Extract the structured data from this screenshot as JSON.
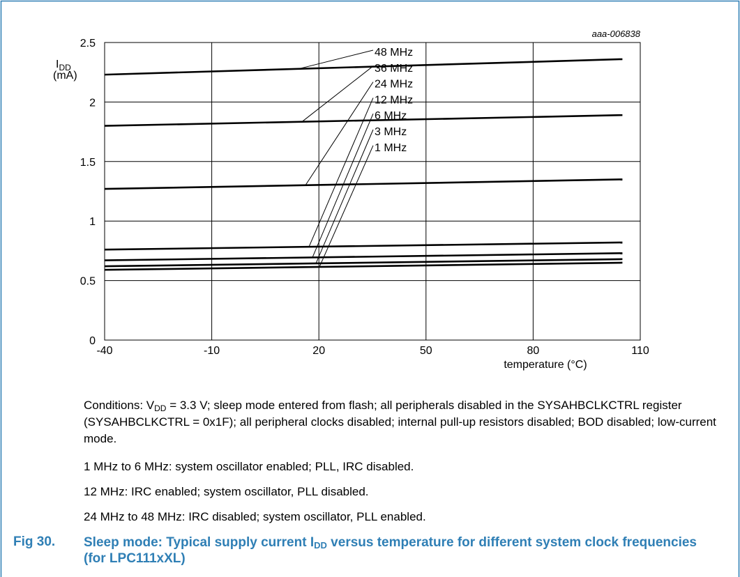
{
  "figure_code": "aaa-006838",
  "chart_data": {
    "type": "line",
    "ylabel_main": "I",
    "ylabel_sub": "DD",
    "ylabel_unit": "(mA)",
    "xlabel": "temperature (°C)",
    "xlim": [
      -40,
      110
    ],
    "ylim": [
      0,
      2.5
    ],
    "xticks": [
      -40,
      -10,
      20,
      50,
      80,
      110
    ],
    "xtick_labels": [
      "-40",
      "-10",
      "20",
      "50",
      "80",
      "110"
    ],
    "yticks": [
      0,
      0.5,
      1,
      1.5,
      2,
      2.5
    ],
    "ytick_labels": [
      "0",
      "0.5",
      "1",
      "1.5",
      "2",
      "2.5"
    ],
    "grid": true,
    "x": [
      -40,
      105
    ],
    "series": [
      {
        "name": "48 MHz",
        "values": [
          2.23,
          2.36
        ]
      },
      {
        "name": "36 MHz",
        "values": [
          1.8,
          1.89
        ]
      },
      {
        "name": "24 MHz",
        "values": [
          1.27,
          1.35
        ]
      },
      {
        "name": "12 MHz",
        "values": [
          0.76,
          0.82
        ]
      },
      {
        "name": "6 MHz",
        "values": [
          0.67,
          0.73
        ]
      },
      {
        "name": "3 MHz",
        "values": [
          0.62,
          0.68
        ]
      },
      {
        "name": "1 MHz",
        "values": [
          0.59,
          0.65
        ]
      }
    ]
  },
  "conditions": {
    "line1_pre": "Conditions: V",
    "line1_sub": "DD",
    "line1_post": " = 3.3 V; sleep mode entered from flash; all peripherals disabled in the SYSAHBCLKCTRL register (SYSAHBCLKCTRL = 0x1F); all peripheral clocks disabled; internal pull-up resistors disabled; BOD disabled; low-current mode.",
    "note1": "1 MHz to 6 MHz: system oscillator enabled; PLL, IRC disabled.",
    "note2": "12 MHz: IRC enabled; system oscillator, PLL disabled.",
    "note3": "24 MHz to 48 MHz: IRC disabled; system oscillator, PLL enabled."
  },
  "caption": {
    "label": "Fig 30.",
    "text_pre": "Sleep mode: Typical supply current I",
    "text_sub": "DD",
    "text_post": " versus temperature for different system clock frequencies (for LPC111xXL)"
  },
  "colors": {
    "frame": "#2f7fb5",
    "caption": "#2f7fb5"
  }
}
